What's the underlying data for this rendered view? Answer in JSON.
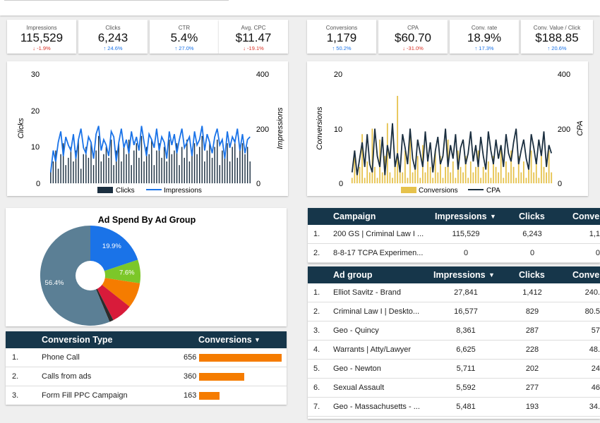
{
  "kpis_left": [
    {
      "label": "Impressions",
      "value": "115,529",
      "delta": "-1.9%",
      "dir": "down"
    },
    {
      "label": "Clicks",
      "value": "6,243",
      "delta": "24.6%",
      "dir": "up"
    },
    {
      "label": "CTR",
      "value": "5.4%",
      "delta": "27.0%",
      "dir": "up"
    },
    {
      "label": "Avg. CPC",
      "value": "$11.47",
      "delta": "-19.1%",
      "dir": "down"
    }
  ],
  "kpis_right": [
    {
      "label": "Conversions",
      "value": "1,179",
      "delta": "50.2%",
      "dir": "up"
    },
    {
      "label": "CPA",
      "value": "$60.70",
      "delta": "-31.0%",
      "dir": "down"
    },
    {
      "label": "Conv. rate",
      "value": "18.9%",
      "delta": "17.3%",
      "dir": "up"
    },
    {
      "label": "Conv. Value / Click",
      "value": "$188.85",
      "delta": "20.6%",
      "dir": "up"
    }
  ],
  "icons": {
    "up": "arrow-up-icon",
    "down": "arrow-down-icon",
    "sort": "sort-down-icon"
  },
  "chart_data": [
    {
      "type": "line",
      "title": "",
      "xlabel": "",
      "ylabel": "Clicks",
      "y2label": "Impressions",
      "ylim": [
        0,
        30
      ],
      "y2lim": [
        0,
        400
      ],
      "yticks": [
        "0",
        "10",
        "20",
        "30"
      ],
      "y2ticks": [
        "0",
        "200",
        "400"
      ],
      "legend": [
        "Clicks",
        "Impressions"
      ],
      "series": [
        {
          "name": "Clicks",
          "kind": "bar",
          "color": "#1b2f40",
          "values": [
            3,
            6,
            9,
            4,
            8,
            11,
            5,
            7,
            10,
            6,
            9,
            12,
            4,
            8,
            10,
            7,
            11,
            5,
            9,
            13,
            6,
            8,
            10,
            7,
            12,
            5,
            9,
            11,
            6,
            10,
            8,
            12,
            5,
            9,
            11,
            7,
            13,
            6,
            10,
            8,
            12,
            5,
            9,
            11,
            7,
            10,
            6,
            12,
            8,
            9,
            11,
            5,
            10,
            7,
            12,
            6,
            9,
            11,
            8,
            10,
            13,
            6,
            9,
            11,
            7,
            10,
            12,
            5,
            9,
            8,
            11,
            6,
            10,
            12,
            7,
            9,
            11,
            8,
            10,
            6
          ]
        },
        {
          "name": "Impressions",
          "kind": "line",
          "color": "#1a73e8",
          "values": [
            40,
            120,
            80,
            150,
            190,
            100,
            170,
            140,
            120,
            180,
            90,
            160,
            200,
            130,
            110,
            170,
            150,
            90,
            180,
            210,
            120,
            160,
            140,
            100,
            190,
            170,
            80,
            150,
            200,
            130,
            160,
            110,
            190,
            140,
            170,
            120,
            210,
            150,
            100,
            180,
            160,
            130,
            200,
            120,
            170,
            150,
            90,
            190,
            140,
            180,
            110,
            160,
            200,
            130,
            150,
            170,
            100,
            190,
            140,
            160,
            210,
            120,
            180,
            150,
            110,
            170,
            200,
            140,
            160,
            90,
            190,
            130,
            170,
            150,
            200,
            120,
            180,
            110,
            160,
            170
          ]
        }
      ]
    },
    {
      "type": "bar",
      "title": "",
      "xlabel": "",
      "ylabel": "Conversions",
      "y2label": "CPA",
      "ylim": [
        0,
        20
      ],
      "y2lim": [
        0,
        400
      ],
      "yticks": [
        "0",
        "10",
        "20"
      ],
      "y2ticks": [
        "0",
        "200",
        "400"
      ],
      "legend": [
        "Conversions",
        "CPA"
      ],
      "series": [
        {
          "name": "Conversions",
          "kind": "bar",
          "color": "#e6c24c",
          "values": [
            1,
            6,
            2,
            3,
            9,
            1,
            4,
            2,
            10,
            3,
            1,
            8,
            2,
            5,
            11,
            2,
            1,
            4,
            16,
            3,
            2,
            6,
            1,
            9,
            2,
            3,
            5,
            1,
            7,
            2,
            4,
            3,
            1,
            6,
            2,
            5,
            1,
            3,
            8,
            2,
            4,
            1,
            6,
            3,
            2,
            5,
            1,
            4,
            2,
            3,
            6,
            1,
            3,
            2,
            4,
            1,
            5,
            3,
            2,
            7,
            1,
            4,
            2,
            6,
            3,
            1,
            5,
            2,
            4,
            1,
            3,
            6,
            2,
            4,
            1,
            5,
            3,
            2,
            6,
            2
          ]
        },
        {
          "name": "CPA",
          "kind": "line",
          "color": "#1b2f40",
          "values": [
            40,
            120,
            30,
            90,
            150,
            60,
            180,
            70,
            40,
            200,
            100,
            60,
            170,
            30,
            140,
            90,
            220,
            60,
            110,
            40,
            180,
            130,
            70,
            200,
            90,
            50,
            160,
            110,
            60,
            190,
            80,
            150,
            40,
            120,
            170,
            70,
            100,
            200,
            60,
            140,
            90,
            180,
            50,
            130,
            160,
            70,
            110,
            190,
            80,
            140,
            60,
            170,
            100,
            50,
            190,
            120,
            70,
            160,
            90,
            140,
            60,
            180,
            110,
            80,
            150,
            200,
            70,
            120,
            160,
            90,
            50,
            180,
            130,
            70,
            160,
            100,
            190,
            60,
            140,
            110
          ]
        }
      ]
    },
    {
      "type": "pie",
      "title": "Ad Spend By Ad Group",
      "slices": [
        {
          "label": "19.9%",
          "value": 19.9,
          "color": "#1a73e8"
        },
        {
          "label": "7.6%",
          "value": 7.6,
          "color": "#7cc729"
        },
        {
          "label": "",
          "value": 8.2,
          "color": "#f57c00"
        },
        {
          "label": "",
          "value": 6.8,
          "color": "#d81b3a"
        },
        {
          "label": "",
          "value": 1.3,
          "color": "#2c2c2c"
        },
        {
          "label": "56.4%",
          "value": 56.4,
          "color": "#5b7f95"
        }
      ]
    }
  ],
  "conversion_table": {
    "headers": [
      "Conversion Type",
      "Conversions"
    ],
    "max": 656,
    "rows": [
      {
        "idx": "1.",
        "type": "Phone Call",
        "value": "656",
        "n": 656
      },
      {
        "idx": "2.",
        "type": "Calls from ads",
        "value": "360",
        "n": 360
      },
      {
        "idx": "3.",
        "type": "Form Fill PPC Campaign",
        "value": "163",
        "n": 163
      }
    ]
  },
  "campaign_table": {
    "headers": [
      "Campaign",
      "Impressions",
      "Clicks",
      "Conver"
    ],
    "rows": [
      {
        "idx": "1.",
        "name": "200 GS | Criminal Law I ...",
        "impr": "115,529",
        "clicks": "6,243",
        "conv": "1,1"
      },
      {
        "idx": "2.",
        "name": "8-8-17 TCPA Experimen...",
        "impr": "0",
        "clicks": "0",
        "conv": "0"
      }
    ]
  },
  "adgroup_table": {
    "headers": [
      "Ad group",
      "Impressions",
      "Clicks",
      "Conver"
    ],
    "rows": [
      {
        "idx": "1.",
        "name": "Elliot Savitz - Brand",
        "impr": "27,841",
        "clicks": "1,412",
        "conv": "240."
      },
      {
        "idx": "2.",
        "name": "Criminal Law I | Deskto...",
        "impr": "16,577",
        "clicks": "829",
        "conv": "80.5"
      },
      {
        "idx": "3.",
        "name": "Geo - Quincy",
        "impr": "8,361",
        "clicks": "287",
        "conv": "57"
      },
      {
        "idx": "4.",
        "name": "Warrants | Atty/Lawyer",
        "impr": "6,625",
        "clicks": "228",
        "conv": "48."
      },
      {
        "idx": "5.",
        "name": "Geo - Newton",
        "impr": "5,711",
        "clicks": "202",
        "conv": "24"
      },
      {
        "idx": "6.",
        "name": "Sexual Assault",
        "impr": "5,592",
        "clicks": "277",
        "conv": "46"
      },
      {
        "idx": "7.",
        "name": "Geo - Massachusetts - ...",
        "impr": "5,481",
        "clicks": "193",
        "conv": "34."
      }
    ]
  }
}
